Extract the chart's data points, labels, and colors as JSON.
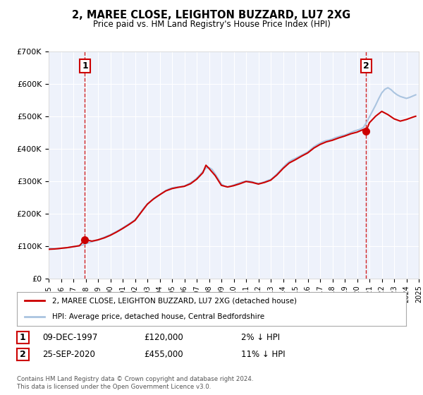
{
  "title": "2, MAREE CLOSE, LEIGHTON BUZZARD, LU7 2XG",
  "subtitle": "Price paid vs. HM Land Registry's House Price Index (HPI)",
  "hpi_label": "HPI: Average price, detached house, Central Bedfordshire",
  "property_label": "2, MAREE CLOSE, LEIGHTON BUZZARD, LU7 2XG (detached house)",
  "sale1_date": "09-DEC-1997",
  "sale1_price": "£120,000",
  "sale1_hpi": "2% ↓ HPI",
  "sale1_year": 1997.94,
  "sale1_value": 120000,
  "sale2_date": "25-SEP-2020",
  "sale2_price": "£455,000",
  "sale2_hpi": "11% ↓ HPI",
  "sale2_year": 2020.73,
  "sale2_value": 455000,
  "copyright_text": "Contains HM Land Registry data © Crown copyright and database right 2024.\nThis data is licensed under the Open Government Licence v3.0.",
  "hpi_color": "#aac4e0",
  "property_color": "#cc0000",
  "background_color": "#eef2fb",
  "ylim_max": 700000,
  "xlim_start": 1995,
  "xlim_end": 2025,
  "hpi_data": [
    [
      1995.0,
      93000
    ],
    [
      1995.25,
      92500
    ],
    [
      1995.5,
      92000
    ],
    [
      1995.75,
      91500
    ],
    [
      1996.0,
      93000
    ],
    [
      1996.25,
      94000
    ],
    [
      1996.5,
      95000
    ],
    [
      1996.75,
      96500
    ],
    [
      1997.0,
      98000
    ],
    [
      1997.25,
      99500
    ],
    [
      1997.5,
      101000
    ],
    [
      1997.75,
      103000
    ],
    [
      1998.0,
      107000
    ],
    [
      1998.25,
      110000
    ],
    [
      1998.5,
      113000
    ],
    [
      1998.75,
      116000
    ],
    [
      1999.0,
      119000
    ],
    [
      1999.25,
      123000
    ],
    [
      1999.5,
      127000
    ],
    [
      1999.75,
      131000
    ],
    [
      2000.0,
      135000
    ],
    [
      2000.25,
      140000
    ],
    [
      2000.5,
      145000
    ],
    [
      2000.75,
      150000
    ],
    [
      2001.0,
      156000
    ],
    [
      2001.25,
      162000
    ],
    [
      2001.5,
      168000
    ],
    [
      2001.75,
      174000
    ],
    [
      2002.0,
      181000
    ],
    [
      2002.25,
      193000
    ],
    [
      2002.5,
      206000
    ],
    [
      2002.75,
      219000
    ],
    [
      2003.0,
      229000
    ],
    [
      2003.25,
      238000
    ],
    [
      2003.5,
      246000
    ],
    [
      2003.75,
      253000
    ],
    [
      2004.0,
      258000
    ],
    [
      2004.25,
      265000
    ],
    [
      2004.5,
      271000
    ],
    [
      2004.75,
      276000
    ],
    [
      2005.0,
      279000
    ],
    [
      2005.25,
      281000
    ],
    [
      2005.5,
      282000
    ],
    [
      2005.75,
      283000
    ],
    [
      2006.0,
      285000
    ],
    [
      2006.25,
      290000
    ],
    [
      2006.5,
      295000
    ],
    [
      2006.75,
      301000
    ],
    [
      2007.0,
      309000
    ],
    [
      2007.25,
      319000
    ],
    [
      2007.5,
      330000
    ],
    [
      2007.75,
      340000
    ],
    [
      2008.0,
      342000
    ],
    [
      2008.25,
      336000
    ],
    [
      2008.5,
      322000
    ],
    [
      2008.75,
      307000
    ],
    [
      2009.0,
      291000
    ],
    [
      2009.25,
      285000
    ],
    [
      2009.5,
      282000
    ],
    [
      2009.75,
      284000
    ],
    [
      2010.0,
      288000
    ],
    [
      2010.25,
      292000
    ],
    [
      2010.5,
      295000
    ],
    [
      2010.75,
      298000
    ],
    [
      2011.0,
      300000
    ],
    [
      2011.25,
      300000
    ],
    [
      2011.5,
      298000
    ],
    [
      2011.75,
      295000
    ],
    [
      2012.0,
      293000
    ],
    [
      2012.25,
      295000
    ],
    [
      2012.5,
      298000
    ],
    [
      2012.75,
      302000
    ],
    [
      2013.0,
      305000
    ],
    [
      2013.25,
      313000
    ],
    [
      2013.5,
      322000
    ],
    [
      2013.75,
      332000
    ],
    [
      2014.0,
      342000
    ],
    [
      2014.25,
      352000
    ],
    [
      2014.5,
      360000
    ],
    [
      2014.75,
      366000
    ],
    [
      2015.0,
      370000
    ],
    [
      2015.25,
      375000
    ],
    [
      2015.5,
      380000
    ],
    [
      2015.75,
      385000
    ],
    [
      2016.0,
      390000
    ],
    [
      2016.25,
      398000
    ],
    [
      2016.5,
      406000
    ],
    [
      2016.75,
      412000
    ],
    [
      2017.0,
      417000
    ],
    [
      2017.25,
      422000
    ],
    [
      2017.5,
      425000
    ],
    [
      2017.75,
      427000
    ],
    [
      2018.0,
      430000
    ],
    [
      2018.25,
      434000
    ],
    [
      2018.5,
      437000
    ],
    [
      2018.75,
      440000
    ],
    [
      2019.0,
      442000
    ],
    [
      2019.25,
      446000
    ],
    [
      2019.5,
      450000
    ],
    [
      2019.75,
      454000
    ],
    [
      2020.0,
      457000
    ],
    [
      2020.25,
      460000
    ],
    [
      2020.5,
      465000
    ],
    [
      2020.75,
      480000
    ],
    [
      2021.0,
      498000
    ],
    [
      2021.25,
      516000
    ],
    [
      2021.5,
      534000
    ],
    [
      2021.75,
      554000
    ],
    [
      2022.0,
      572000
    ],
    [
      2022.25,
      583000
    ],
    [
      2022.5,
      588000
    ],
    [
      2022.75,
      582000
    ],
    [
      2023.0,
      573000
    ],
    [
      2023.25,
      566000
    ],
    [
      2023.5,
      561000
    ],
    [
      2023.75,
      558000
    ],
    [
      2024.0,
      555000
    ],
    [
      2024.25,
      558000
    ],
    [
      2024.5,
      562000
    ],
    [
      2024.75,
      566000
    ]
  ],
  "property_data": [
    [
      1995.0,
      90000
    ],
    [
      1995.5,
      91000
    ],
    [
      1996.0,
      93000
    ],
    [
      1996.5,
      95000
    ],
    [
      1997.0,
      98000
    ],
    [
      1997.5,
      101000
    ],
    [
      1997.94,
      120000
    ],
    [
      1998.5,
      115000
    ],
    [
      1999.0,
      119000
    ],
    [
      1999.5,
      125000
    ],
    [
      2000.0,
      133000
    ],
    [
      2000.5,
      143000
    ],
    [
      2001.0,
      154000
    ],
    [
      2001.5,
      166000
    ],
    [
      2002.0,
      179000
    ],
    [
      2002.5,
      204000
    ],
    [
      2003.0,
      229000
    ],
    [
      2003.5,
      245000
    ],
    [
      2004.0,
      258000
    ],
    [
      2004.5,
      270000
    ],
    [
      2005.0,
      277000
    ],
    [
      2005.5,
      281000
    ],
    [
      2006.0,
      284000
    ],
    [
      2006.5,
      292000
    ],
    [
      2007.0,
      306000
    ],
    [
      2007.5,
      326000
    ],
    [
      2007.75,
      349000
    ],
    [
      2008.0,
      339000
    ],
    [
      2008.5,
      317000
    ],
    [
      2009.0,
      287000
    ],
    [
      2009.5,
      282000
    ],
    [
      2010.0,
      286000
    ],
    [
      2010.5,
      292000
    ],
    [
      2011.0,
      299000
    ],
    [
      2011.5,
      296000
    ],
    [
      2012.0,
      291000
    ],
    [
      2012.5,
      296000
    ],
    [
      2013.0,
      303000
    ],
    [
      2013.5,
      319000
    ],
    [
      2014.0,
      339000
    ],
    [
      2014.5,
      356000
    ],
    [
      2015.0,
      366000
    ],
    [
      2015.5,
      377000
    ],
    [
      2016.0,
      387000
    ],
    [
      2016.5,
      402000
    ],
    [
      2017.0,
      413000
    ],
    [
      2017.5,
      421000
    ],
    [
      2018.0,
      426000
    ],
    [
      2018.5,
      433000
    ],
    [
      2019.0,
      439000
    ],
    [
      2019.5,
      446000
    ],
    [
      2020.0,
      451000
    ],
    [
      2020.5,
      459000
    ],
    [
      2020.73,
      455000
    ],
    [
      2021.0,
      480000
    ],
    [
      2021.5,
      500000
    ],
    [
      2022.0,
      515000
    ],
    [
      2022.5,
      505000
    ],
    [
      2023.0,
      492000
    ],
    [
      2023.5,
      485000
    ],
    [
      2024.0,
      490000
    ],
    [
      2024.5,
      497000
    ],
    [
      2024.75,
      500000
    ]
  ]
}
